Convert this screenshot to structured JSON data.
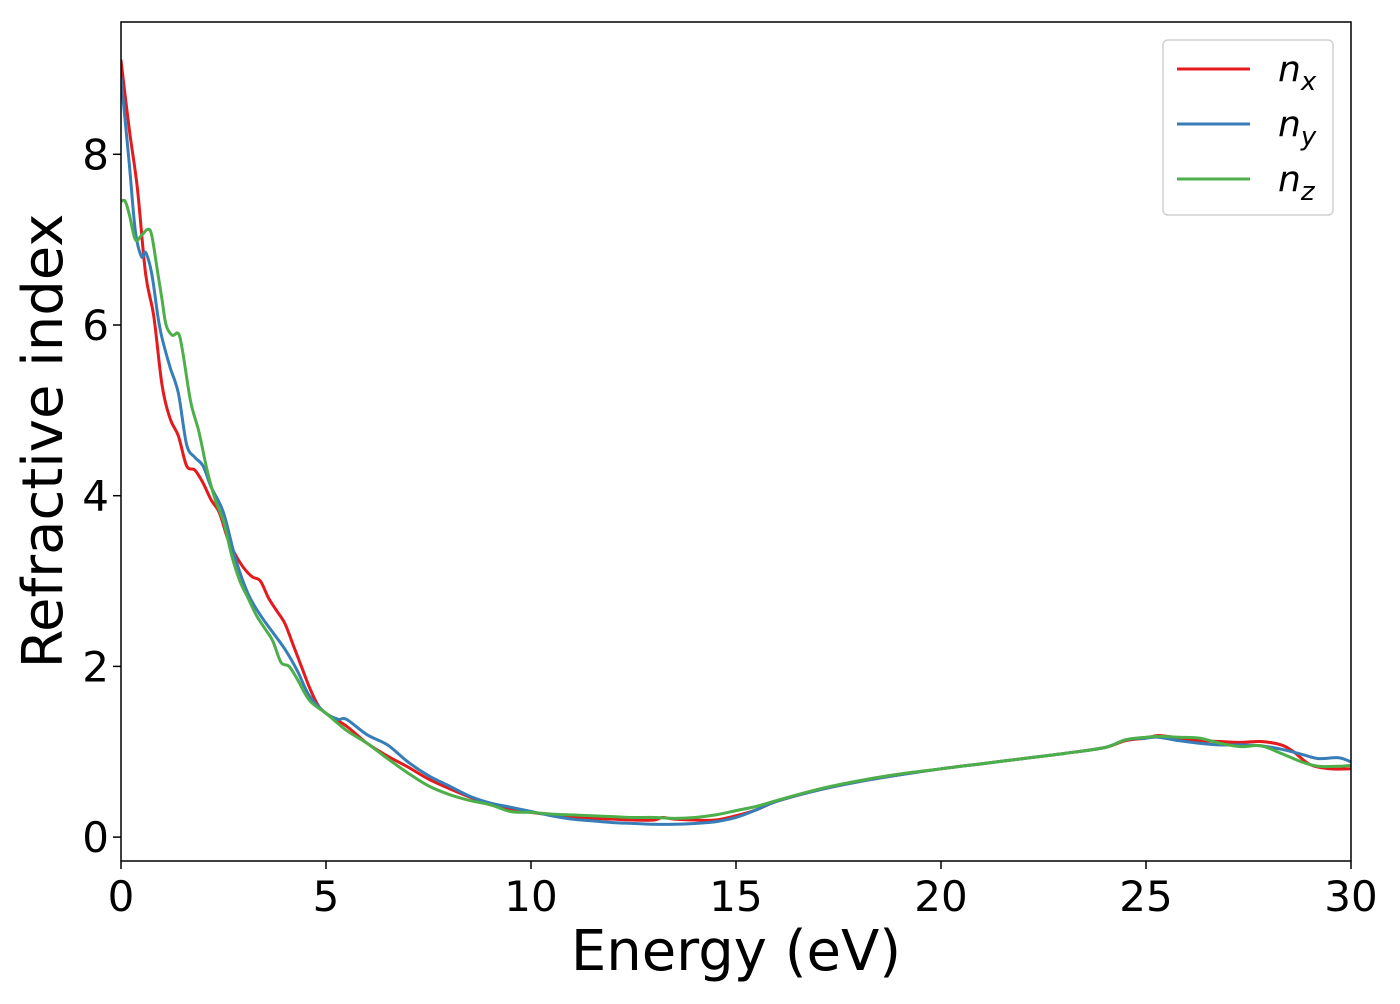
{
  "chart_data": {
    "type": "line",
    "title": "",
    "xlabel": "Energy (eV)",
    "ylabel": "Refractive index",
    "xlim": [
      0,
      30
    ],
    "ylim": [
      -0.28,
      9.55
    ],
    "xticks": [
      0,
      5,
      10,
      15,
      20,
      25,
      30
    ],
    "yticks": [
      0,
      2,
      4,
      6,
      8
    ],
    "xtick_labels": [
      "0",
      "5",
      "10",
      "15",
      "20",
      "25",
      "30"
    ],
    "ytick_labels": [
      "0",
      "2",
      "4",
      "6",
      "8"
    ],
    "grid": false,
    "legend_position": "top-right",
    "series": [
      {
        "name": "n",
        "subscript": "x",
        "color": "#e41a1c",
        "points": [
          [
            0,
            9.1
          ],
          [
            0.2,
            8.3
          ],
          [
            0.4,
            7.6
          ],
          [
            0.6,
            6.6
          ],
          [
            0.8,
            6.1
          ],
          [
            1.0,
            5.3
          ],
          [
            1.2,
            4.9
          ],
          [
            1.4,
            4.7
          ],
          [
            1.6,
            4.35
          ],
          [
            1.8,
            4.3
          ],
          [
            2.0,
            4.15
          ],
          [
            2.2,
            3.95
          ],
          [
            2.4,
            3.8
          ],
          [
            2.6,
            3.5
          ],
          [
            2.8,
            3.3
          ],
          [
            3.0,
            3.15
          ],
          [
            3.2,
            3.05
          ],
          [
            3.4,
            3.0
          ],
          [
            3.6,
            2.8
          ],
          [
            3.8,
            2.65
          ],
          [
            4.0,
            2.5
          ],
          [
            4.2,
            2.25
          ],
          [
            4.4,
            2.0
          ],
          [
            4.6,
            1.75
          ],
          [
            4.8,
            1.55
          ],
          [
            5.0,
            1.45
          ],
          [
            5.5,
            1.3
          ],
          [
            6.0,
            1.1
          ],
          [
            6.5,
            0.95
          ],
          [
            7.0,
            0.82
          ],
          [
            7.5,
            0.68
          ],
          [
            8.0,
            0.57
          ],
          [
            8.5,
            0.47
          ],
          [
            9.0,
            0.38
          ],
          [
            9.5,
            0.33
          ],
          [
            10.0,
            0.29
          ],
          [
            10.5,
            0.26
          ],
          [
            11.0,
            0.23
          ],
          [
            11.5,
            0.22
          ],
          [
            12.0,
            0.21
          ],
          [
            12.5,
            0.2
          ],
          [
            13.0,
            0.2
          ],
          [
            13.2,
            0.23
          ],
          [
            13.5,
            0.21
          ],
          [
            14.0,
            0.2
          ],
          [
            14.5,
            0.2
          ],
          [
            15.0,
            0.25
          ],
          [
            15.5,
            0.32
          ],
          [
            16.0,
            0.42
          ],
          [
            17.0,
            0.55
          ],
          [
            18.0,
            0.65
          ],
          [
            19.0,
            0.73
          ],
          [
            20.0,
            0.8
          ],
          [
            21.0,
            0.86
          ],
          [
            22.0,
            0.92
          ],
          [
            23.0,
            0.98
          ],
          [
            24.0,
            1.05
          ],
          [
            24.5,
            1.13
          ],
          [
            25.0,
            1.16
          ],
          [
            25.3,
            1.19
          ],
          [
            25.8,
            1.16
          ],
          [
            26.3,
            1.13
          ],
          [
            26.8,
            1.12
          ],
          [
            27.3,
            1.11
          ],
          [
            27.8,
            1.12
          ],
          [
            28.3,
            1.08
          ],
          [
            28.6,
            1.0
          ],
          [
            29.0,
            0.85
          ],
          [
            29.5,
            0.8
          ],
          [
            30.0,
            0.8
          ]
        ]
      },
      {
        "name": "n",
        "subscript": "y",
        "color": "#377eb8",
        "points": [
          [
            0,
            8.9
          ],
          [
            0.2,
            7.9
          ],
          [
            0.35,
            7.1
          ],
          [
            0.5,
            6.8
          ],
          [
            0.6,
            6.85
          ],
          [
            0.75,
            6.6
          ],
          [
            0.9,
            6.1
          ],
          [
            1.0,
            5.85
          ],
          [
            1.2,
            5.5
          ],
          [
            1.4,
            5.2
          ],
          [
            1.6,
            4.6
          ],
          [
            1.8,
            4.45
          ],
          [
            2.0,
            4.35
          ],
          [
            2.2,
            4.1
          ],
          [
            2.5,
            3.8
          ],
          [
            2.8,
            3.25
          ],
          [
            3.1,
            2.85
          ],
          [
            3.4,
            2.6
          ],
          [
            3.7,
            2.4
          ],
          [
            4.0,
            2.2
          ],
          [
            4.3,
            1.95
          ],
          [
            4.6,
            1.65
          ],
          [
            5.0,
            1.45
          ],
          [
            5.3,
            1.38
          ],
          [
            5.5,
            1.38
          ],
          [
            6.0,
            1.2
          ],
          [
            6.5,
            1.08
          ],
          [
            7.0,
            0.88
          ],
          [
            7.5,
            0.72
          ],
          [
            8.0,
            0.6
          ],
          [
            8.5,
            0.48
          ],
          [
            9.0,
            0.4
          ],
          [
            9.5,
            0.35
          ],
          [
            10.0,
            0.3
          ],
          [
            10.5,
            0.25
          ],
          [
            11.0,
            0.21
          ],
          [
            11.5,
            0.19
          ],
          [
            12.0,
            0.17
          ],
          [
            12.5,
            0.16
          ],
          [
            13.0,
            0.15
          ],
          [
            13.5,
            0.15
          ],
          [
            14.0,
            0.16
          ],
          [
            14.5,
            0.18
          ],
          [
            15.0,
            0.23
          ],
          [
            15.5,
            0.32
          ],
          [
            16.0,
            0.42
          ],
          [
            17.0,
            0.55
          ],
          [
            18.0,
            0.65
          ],
          [
            19.0,
            0.73
          ],
          [
            20.0,
            0.8
          ],
          [
            21.0,
            0.86
          ],
          [
            22.0,
            0.92
          ],
          [
            23.0,
            0.98
          ],
          [
            24.0,
            1.05
          ],
          [
            24.5,
            1.14
          ],
          [
            25.0,
            1.16
          ],
          [
            25.3,
            1.17
          ],
          [
            25.8,
            1.13
          ],
          [
            26.3,
            1.1
          ],
          [
            26.8,
            1.08
          ],
          [
            27.3,
            1.08
          ],
          [
            27.8,
            1.07
          ],
          [
            28.3,
            1.03
          ],
          [
            28.8,
            0.97
          ],
          [
            29.2,
            0.92
          ],
          [
            29.7,
            0.93
          ],
          [
            30.0,
            0.88
          ]
        ]
      },
      {
        "name": "n",
        "subscript": "z",
        "color": "#4daf4a",
        "points": [
          [
            0,
            7.45
          ],
          [
            0.1,
            7.45
          ],
          [
            0.2,
            7.3
          ],
          [
            0.35,
            7.0
          ],
          [
            0.5,
            7.05
          ],
          [
            0.65,
            7.12
          ],
          [
            0.75,
            7.05
          ],
          [
            0.9,
            6.6
          ],
          [
            1.0,
            6.3
          ],
          [
            1.1,
            6.0
          ],
          [
            1.25,
            5.88
          ],
          [
            1.4,
            5.9
          ],
          [
            1.5,
            5.7
          ],
          [
            1.7,
            5.1
          ],
          [
            1.9,
            4.75
          ],
          [
            2.1,
            4.3
          ],
          [
            2.3,
            3.95
          ],
          [
            2.5,
            3.7
          ],
          [
            2.7,
            3.3
          ],
          [
            2.9,
            3.0
          ],
          [
            3.1,
            2.8
          ],
          [
            3.3,
            2.6
          ],
          [
            3.5,
            2.45
          ],
          [
            3.7,
            2.3
          ],
          [
            3.9,
            2.05
          ],
          [
            4.1,
            2.0
          ],
          [
            4.3,
            1.85
          ],
          [
            4.6,
            1.6
          ],
          [
            5.0,
            1.45
          ],
          [
            5.5,
            1.25
          ],
          [
            6.0,
            1.1
          ],
          [
            6.5,
            0.92
          ],
          [
            7.0,
            0.75
          ],
          [
            7.5,
            0.6
          ],
          [
            8.0,
            0.5
          ],
          [
            8.5,
            0.43
          ],
          [
            9.0,
            0.38
          ],
          [
            9.5,
            0.3
          ],
          [
            10.0,
            0.29
          ],
          [
            10.5,
            0.27
          ],
          [
            11.0,
            0.26
          ],
          [
            11.5,
            0.25
          ],
          [
            12.0,
            0.24
          ],
          [
            12.5,
            0.23
          ],
          [
            13.0,
            0.23
          ],
          [
            13.5,
            0.22
          ],
          [
            14.0,
            0.23
          ],
          [
            14.5,
            0.26
          ],
          [
            15.0,
            0.31
          ],
          [
            15.5,
            0.36
          ],
          [
            16.0,
            0.43
          ],
          [
            17.0,
            0.56
          ],
          [
            18.0,
            0.66
          ],
          [
            19.0,
            0.74
          ],
          [
            20.0,
            0.8
          ],
          [
            21.0,
            0.86
          ],
          [
            22.0,
            0.92
          ],
          [
            23.0,
            0.98
          ],
          [
            24.0,
            1.05
          ],
          [
            24.5,
            1.14
          ],
          [
            25.0,
            1.17
          ],
          [
            25.3,
            1.18
          ],
          [
            25.8,
            1.17
          ],
          [
            26.3,
            1.16
          ],
          [
            26.8,
            1.1
          ],
          [
            27.3,
            1.06
          ],
          [
            27.8,
            1.07
          ],
          [
            28.3,
            0.98
          ],
          [
            28.8,
            0.88
          ],
          [
            29.2,
            0.83
          ],
          [
            29.7,
            0.83
          ],
          [
            30.0,
            0.84
          ]
        ]
      }
    ]
  }
}
